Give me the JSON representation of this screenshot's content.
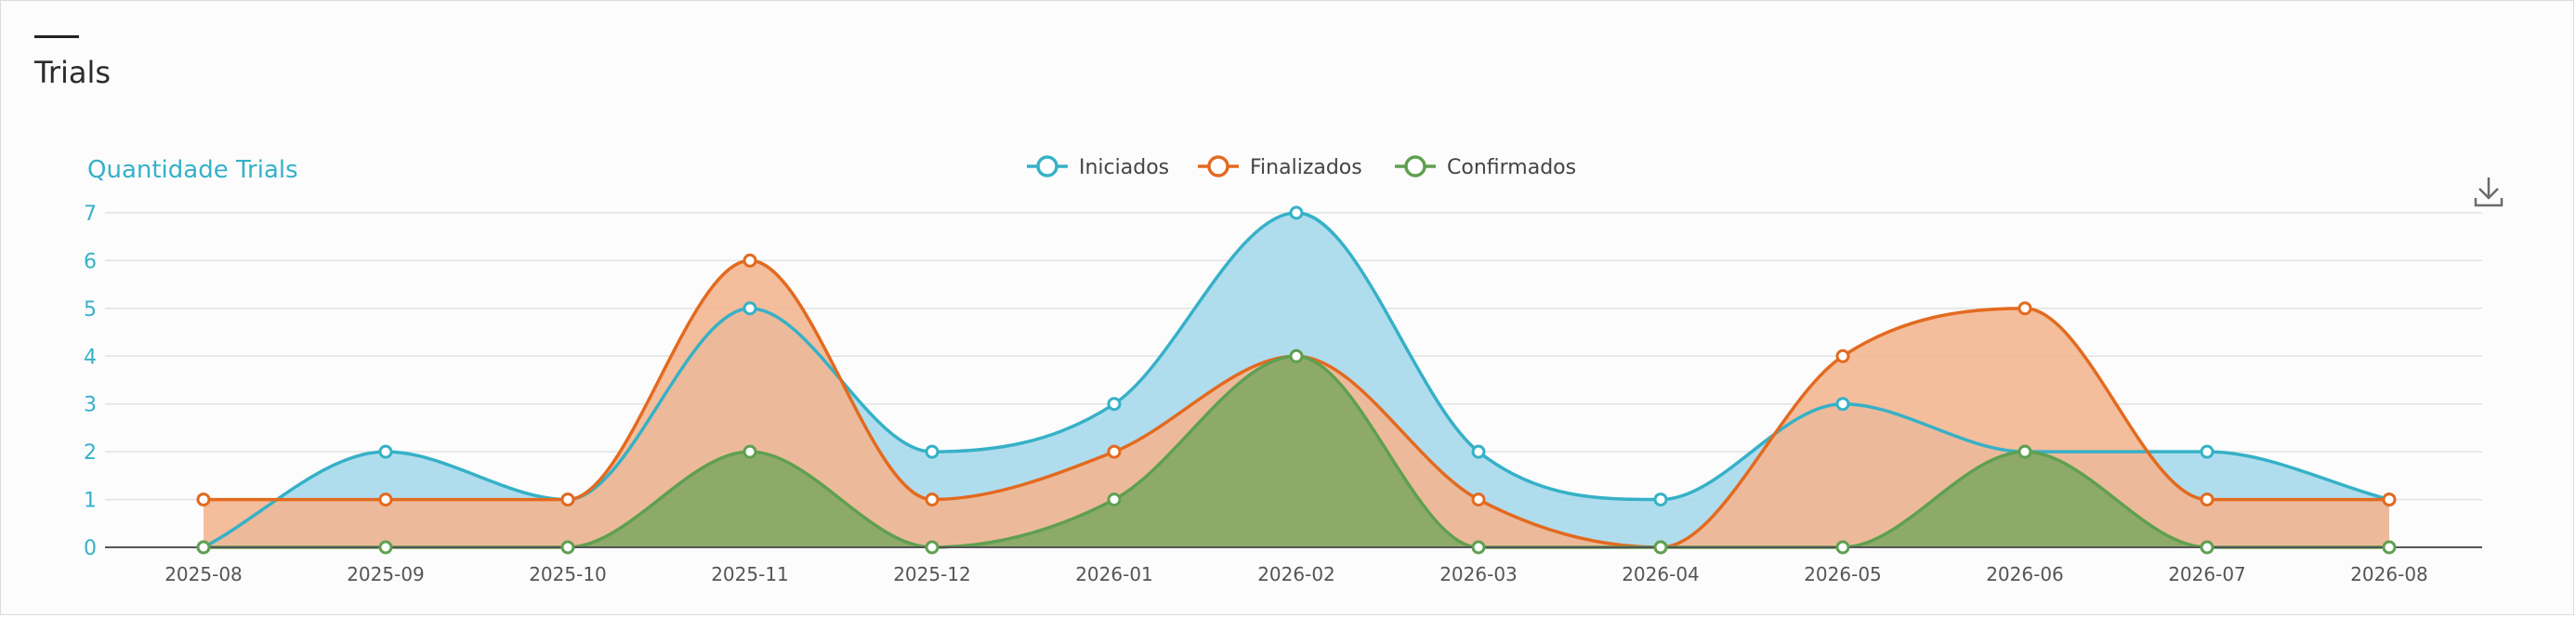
{
  "card": {
    "title": "Trials"
  },
  "toolbar": {
    "download_icon": "download-icon"
  },
  "chart_data": {
    "type": "area",
    "title": "",
    "ylabel": "Quantidade Trials",
    "xlabel": "",
    "ylim": [
      0,
      7
    ],
    "yticks": [
      0,
      1,
      2,
      3,
      4,
      5,
      6,
      7
    ],
    "grid": true,
    "legend_position": "top-center",
    "categories": [
      "2025-08",
      "2025-09",
      "2025-10",
      "2025-11",
      "2025-12",
      "2026-01",
      "2026-02",
      "2026-03",
      "2026-04",
      "2026-05",
      "2026-06",
      "2026-07",
      "2026-08"
    ],
    "series": [
      {
        "name": "Iniciados",
        "color": "#36b1c7",
        "fill": "#a7d9ec",
        "values": [
          0,
          2,
          1,
          5,
          2,
          3,
          7,
          2,
          1,
          3,
          2,
          2,
          1
        ]
      },
      {
        "name": "Finalizados",
        "color": "#e36a1f",
        "fill": "#f3b691",
        "values": [
          1,
          1,
          1,
          6,
          1,
          2,
          4,
          1,
          0,
          4,
          5,
          1,
          1
        ]
      },
      {
        "name": "Confirmados",
        "color": "#5fa050",
        "fill": "#84a866",
        "values": [
          0,
          0,
          0,
          2,
          0,
          1,
          4,
          0,
          0,
          0,
          2,
          0,
          0
        ]
      }
    ]
  }
}
